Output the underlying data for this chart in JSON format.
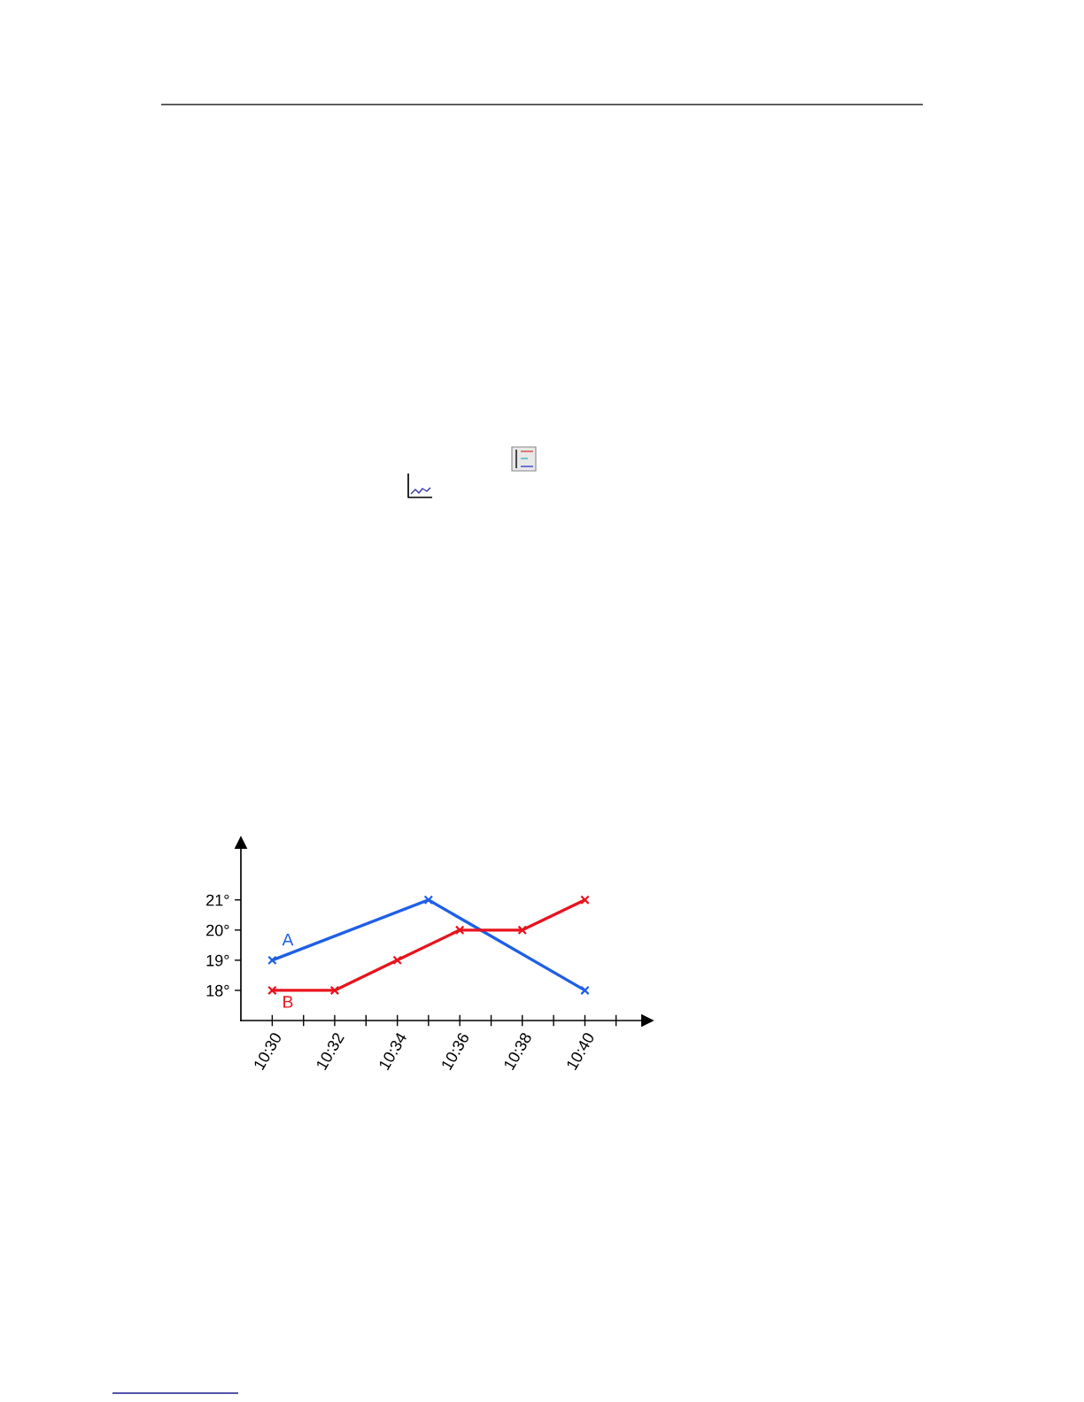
{
  "chart_data": {
    "type": "line",
    "series": [
      {
        "name": "A",
        "color": "#1f5fe6",
        "x": [
          10.5,
          10.5833,
          10.6667
        ],
        "values": [
          19,
          21,
          18
        ]
      },
      {
        "name": "B",
        "color": "#e8141e",
        "x": [
          10.5,
          10.5333,
          10.5667,
          10.6,
          10.6333,
          10.6667
        ],
        "values": [
          18,
          18,
          19,
          20,
          20,
          21
        ]
      }
    ],
    "xlim": [
      10.4833,
      10.7
    ],
    "xticks": [
      {
        "value": 10.5,
        "label": "10:30"
      },
      {
        "value": 10.5167,
        "label": null
      },
      {
        "value": 10.5333,
        "label": "10:32"
      },
      {
        "value": 10.55,
        "label": null
      },
      {
        "value": 10.5667,
        "label": "10:34"
      },
      {
        "value": 10.5833,
        "label": null
      },
      {
        "value": 10.6,
        "label": "10:36"
      },
      {
        "value": 10.6167,
        "label": null
      },
      {
        "value": 10.6333,
        "label": "10:38"
      },
      {
        "value": 10.65,
        "label": null
      },
      {
        "value": 10.6667,
        "label": "10:40"
      },
      {
        "value": 10.6833,
        "label": null
      }
    ],
    "ylim": [
      17,
      22.9
    ],
    "yticks": [
      {
        "value": 18,
        "label": "18°"
      },
      {
        "value": 19,
        "label": "19°"
      },
      {
        "value": 20,
        "label": "20°"
      },
      {
        "value": 21,
        "label": "21°"
      }
    ],
    "marker": "cross",
    "line_style": "solid"
  }
}
